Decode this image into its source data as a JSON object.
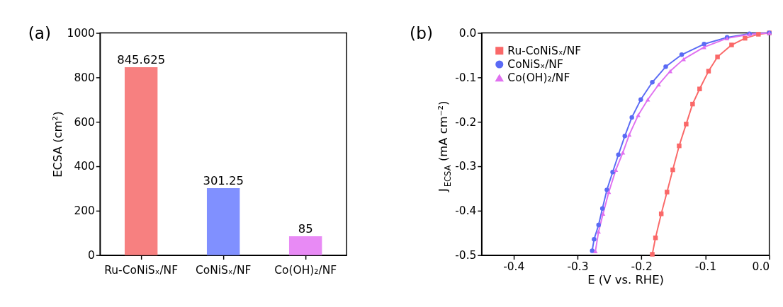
{
  "chart_data": [
    {
      "type": "bar",
      "title": "(a)",
      "ylabel": "ECSA (cm²)",
      "categories": [
        "Ru-CoNiSₓ/NF",
        "CoNiSₓ/NF",
        "Co(OH)₂/NF"
      ],
      "values": [
        845.625,
        301.25,
        85
      ],
      "colors": [
        "#f78080",
        "#8090ff",
        "#e88af5"
      ],
      "ylim": [
        0,
        1000
      ],
      "yticks": [
        0,
        200,
        400,
        600,
        800,
        {
          "value": 1000,
          "label": "1000"
        }
      ],
      "data_labels": true,
      "grid": false,
      "legend": false
    },
    {
      "type": "line",
      "title": "(b)",
      "xlabel": "E (V vs. RHE)",
      "ylabel": "J$_{ECSA}$ (mA cm⁻²)",
      "xlim": [
        -0.45,
        0
      ],
      "xticks": [
        -0.4,
        -0.3,
        -0.2,
        -0.1,
        {
          "value": 0,
          "label": "0.0"
        }
      ],
      "ylim": [
        -0.5,
        0
      ],
      "yticks": [
        -0.5,
        -0.4,
        -0.3,
        -0.2,
        -0.1,
        {
          "value": 0,
          "label": "0.0"
        }
      ],
      "grid": false,
      "legend": "top left",
      "series": [
        {
          "name": "Ru-CoNiSₓ/NF",
          "color": "#fa6868",
          "marker": "square",
          "x": [
            -0.183,
            -0.178,
            -0.169,
            -0.16,
            -0.151,
            -0.141,
            -0.13,
            -0.12,
            -0.109,
            -0.095,
            -0.081,
            -0.059,
            -0.038,
            -0.017,
            0
          ],
          "values": [
            -0.498,
            -0.461,
            -0.407,
            -0.358,
            -0.308,
            -0.254,
            -0.205,
            -0.16,
            -0.126,
            -0.086,
            -0.054,
            -0.027,
            -0.012,
            -0.003,
            0
          ]
        },
        {
          "name": "CoNiSₓ/NF",
          "color": "#5a6af5",
          "marker": "circle",
          "x": [
            -0.277,
            -0.274,
            -0.267,
            -0.261,
            -0.254,
            -0.245,
            -0.236,
            -0.226,
            -0.215,
            -0.201,
            -0.183,
            -0.162,
            -0.137,
            -0.102,
            -0.066,
            -0.031,
            0
          ],
          "values": [
            -0.49,
            -0.464,
            -0.432,
            -0.395,
            -0.353,
            -0.313,
            -0.274,
            -0.232,
            -0.19,
            -0.15,
            -0.111,
            -0.076,
            -0.049,
            -0.025,
            -0.01,
            -0.002,
            0
          ]
        },
        {
          "name": "Co(OH)₂/NF",
          "color": "#e070f0",
          "marker": "triangle",
          "x": [
            -0.272,
            -0.267,
            -0.26,
            -0.251,
            -0.24,
            -0.229,
            -0.219,
            -0.205,
            -0.19,
            -0.173,
            -0.155,
            -0.134,
            -0.102,
            -0.066,
            -0.031,
            0
          ],
          "values": [
            -0.491,
            -0.447,
            -0.407,
            -0.358,
            -0.308,
            -0.269,
            -0.229,
            -0.185,
            -0.15,
            -0.116,
            -0.086,
            -0.059,
            -0.032,
            -0.012,
            -0.003,
            0
          ]
        }
      ]
    }
  ]
}
